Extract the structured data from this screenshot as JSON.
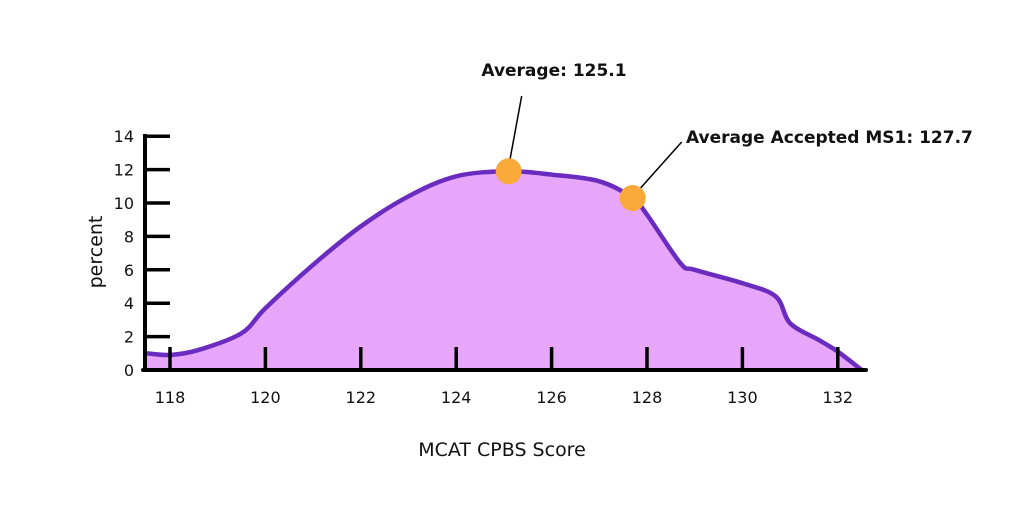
{
  "chart_data": {
    "type": "area",
    "title": "",
    "xlabel": "MCAT CPBS Score",
    "ylabel": "percent",
    "xlim": [
      117.5,
      132.6
    ],
    "ylim": [
      0,
      14
    ],
    "x_ticks": [
      118,
      120,
      122,
      124,
      126,
      128,
      130,
      132
    ],
    "y_ticks": [
      0,
      2,
      4,
      6,
      8,
      10,
      12,
      14
    ],
    "grid": false,
    "series": [
      {
        "x": [
          117.5,
          118,
          118.6,
          119.5,
          120,
          121,
          122,
          123,
          124,
          125.1,
          126,
          127,
          127.7,
          128,
          128.7,
          129,
          130,
          130.7,
          131,
          131.6,
          132,
          132.5
        ],
        "y": [
          1.0,
          0.9,
          1.2,
          2.2,
          3.7,
          6.3,
          8.6,
          10.4,
          11.6,
          11.9,
          11.7,
          11.3,
          10.3,
          9.3,
          6.4,
          6.0,
          5.2,
          4.4,
          2.8,
          1.8,
          1.1,
          0
        ]
      }
    ],
    "annotations": [
      {
        "label": "Average: 125.1",
        "x": 125.1,
        "y": 11.9
      },
      {
        "label": "Average Accepted MS1: 127.7",
        "x": 127.7,
        "y": 10.3
      }
    ],
    "colors": {
      "fill": "#e8a6fa",
      "line": "#6a2bbf",
      "marker": "#f9a93a",
      "axis": "#000000"
    }
  }
}
